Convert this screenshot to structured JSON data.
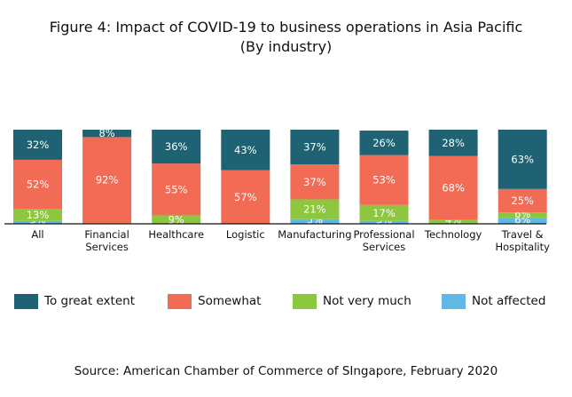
{
  "chart_data": {
    "type": "bar",
    "stacked": true,
    "title": "Figure 4: Impact of COVID-19 to business operations in Asia Pacific",
    "subtitle": "(By industry)",
    "xlabel": "",
    "ylabel": "",
    "ylim": [
      0,
      100
    ],
    "grid": false,
    "legend_position": "bottom",
    "categories": [
      [
        "All"
      ],
      [
        "Financial",
        "Services"
      ],
      [
        "Healthcare"
      ],
      [
        "Logistic"
      ],
      [
        "Manufacturing"
      ],
      [
        "Professional",
        "Services"
      ],
      [
        "Technology"
      ],
      [
        "Travel &",
        "Hospitality"
      ]
    ],
    "series": [
      {
        "name": "Not affected",
        "color": "#5fb9e5",
        "values": [
          3,
          0,
          0,
          0,
          5,
          3,
          0,
          6
        ],
        "labels": [
          "3%",
          "",
          "",
          "",
          "5%",
          "3%",
          "",
          "6%"
        ]
      },
      {
        "name": "Not very much",
        "color": "#8dc63f",
        "values": [
          13,
          1,
          9,
          0,
          21,
          17,
          4,
          6
        ],
        "labels": [
          "13%",
          "",
          "9%",
          "",
          "21%",
          "17%",
          "4%",
          "6%"
        ]
      },
      {
        "name": "Somewhat",
        "color": "#f26b55",
        "values": [
          52,
          92,
          55,
          57,
          37,
          53,
          68,
          25
        ],
        "labels": [
          "52%",
          "92%",
          "55%",
          "57%",
          "37%",
          "53%",
          "68%",
          "25%"
        ]
      },
      {
        "name": "To great extent",
        "color": "#1e6273",
        "values": [
          32,
          8,
          36,
          43,
          37,
          26,
          28,
          63
        ],
        "labels": [
          "32%",
          "8%",
          "36%",
          "43%",
          "37%",
          "26%",
          "28%",
          "63%"
        ]
      }
    ],
    "legend": [
      {
        "name": "To great extent",
        "color": "#1e6273"
      },
      {
        "name": "Somewhat",
        "color": "#f26b55"
      },
      {
        "name": "Not very much",
        "color": "#8dc63f"
      },
      {
        "name": "Not affected",
        "color": "#5fb9e5"
      }
    ]
  },
  "title_line1": "Figure 4: Impact of COVID-19 to business operations in Asia Pacific",
  "title_line2": "(By industry)",
  "legend": {
    "items": [
      {
        "label": "To great extent",
        "color": "#1e6273"
      },
      {
        "label": "Somewhat",
        "color": "#f26b55"
      },
      {
        "label": "Not very much",
        "color": "#8dc63f"
      },
      {
        "label": "Not affected",
        "color": "#5fb9e5"
      }
    ]
  },
  "source": "Source: American Chamber of Commerce of SIngapore, February 2020"
}
